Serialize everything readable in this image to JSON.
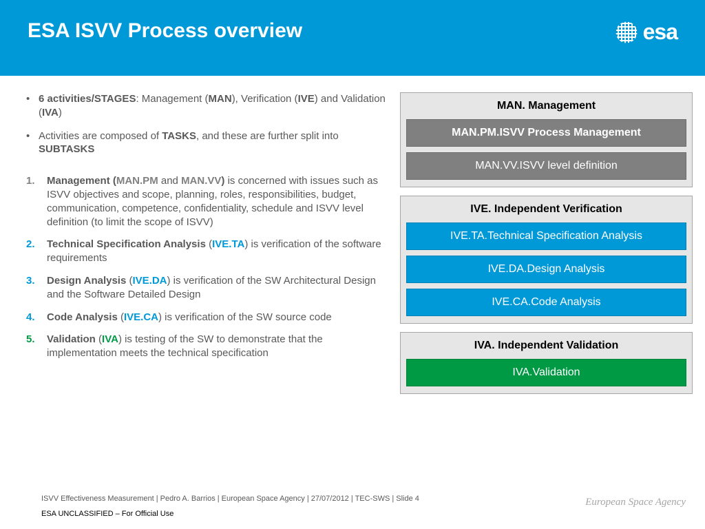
{
  "header": {
    "title": "ESA ISVV Process overview",
    "logo_text": "esa"
  },
  "bullets": [
    {
      "html": "<b>6 activities/STAGES</b>: Management (<b>MAN</b>), Verification (<b>IVE</b>) and Validation (<b>IVA</b>)"
    },
    {
      "html": "Activities are composed of <b>TASKS</b>, and these are further split into <b>SUBTASKS</b>"
    }
  ],
  "numbered": [
    {
      "html": "<b>Management (<span class='gray'>MAN.PM</span></b> and <b><span class='gray'>MAN.VV</span>)</b> is concerned with issues such as ISVV objectives and scope, planning, roles, responsibilities, budget, communication, competence, confidentiality, schedule and ISVV level definition (to limit the scope of ISVV)"
    },
    {
      "html": "<b>Technical Specification Analysis</b> (<b class='blue'>IVE.TA</b>) is verification of the software requirements"
    },
    {
      "html": "<b>Design Analysis</b> (<b class='blue'>IVE.DA</b>) is verification of the SW Architectural Design and the Software Detailed Design"
    },
    {
      "html": "<b>Code Analysis</b> (<b class='blue'>IVE.CA</b>) is verification of the SW source code"
    },
    {
      "html": "<b>Validation</b> (<b class='green'>IVA</b>) is testing of the SW to demonstrate that the implementation meets the technical specification"
    }
  ],
  "groups": [
    {
      "title": "MAN. Management",
      "color": "#808080",
      "boxes": [
        {
          "label": "MAN.PM.ISVV Process Management",
          "bold": true
        },
        {
          "label": "MAN.VV.ISVV level definition"
        }
      ]
    },
    {
      "title": "IVE. Independent Verification",
      "color": "#0099d8",
      "boxes": [
        {
          "label": "IVE.TA.Technical Specification Analysis"
        },
        {
          "label": "IVE.DA.Design Analysis"
        },
        {
          "label": "IVE.CA.Code Analysis"
        }
      ]
    },
    {
      "title": "IVA. Independent Validation",
      "color": "#009a44",
      "boxes": [
        {
          "label": "IVA.Validation"
        }
      ]
    }
  ],
  "footer": {
    "line": "ISVV Effectiveness Measurement | Pedro A. Barrios | European Space Agency | 27/07/2012 | TEC-SWS | Slide  4",
    "classification": "ESA UNCLASSIFIED – For Official Use",
    "agency": "European Space Agency"
  }
}
